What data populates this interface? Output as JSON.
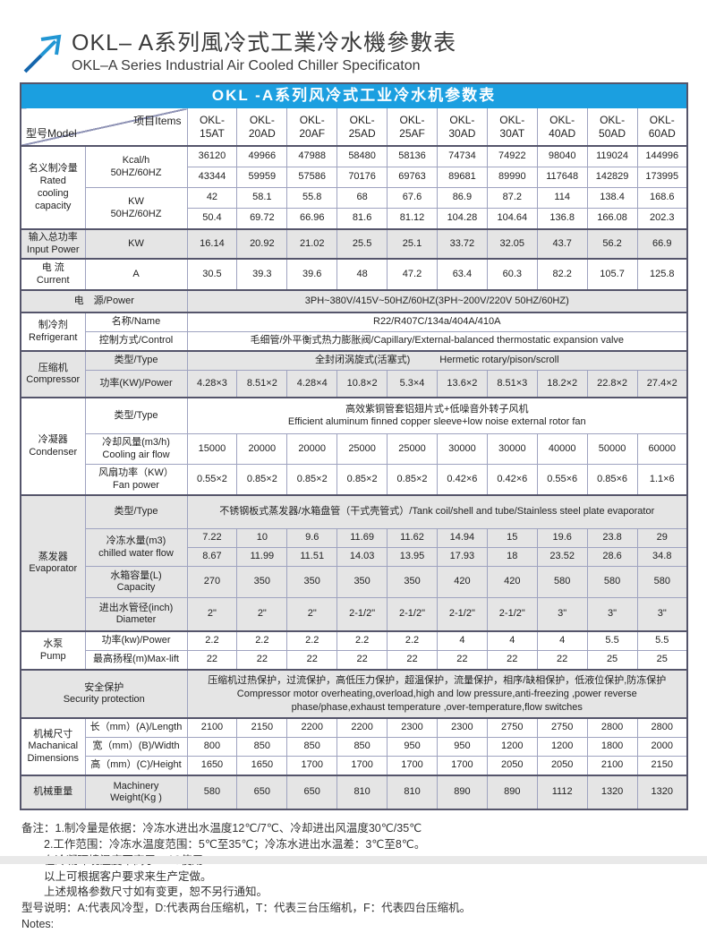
{
  "header": {
    "title_cn": "OKL– A系列風冷式工業冷水機參數表",
    "title_en": "OKL–A Series Industrial Air Cooled Chiller Specificaton"
  },
  "banner": "OKL -A系列风冷式工业冷水机参数表",
  "corner": {
    "model": "型号Model",
    "items": "项目Items"
  },
  "models": [
    "OKL-15AT",
    "OKL-20AD",
    "OKL-20AF",
    "OKL-25AD",
    "OKL-25AF",
    "OKL-30AD",
    "OKL-30AT",
    "OKL-40AD",
    "OKL-50AD",
    "OKL-60AD"
  ],
  "labels": {
    "rated": "名义制冷量\nRated\ncooling\ncapacity",
    "kcal": "Kcal/h\n50HZ/60HZ",
    "kw": "KW\n50HZ/60HZ",
    "input_power": "输入总功率\nInput Power",
    "kw_unit": "KW",
    "current": "电 流\nCurrent",
    "ampere": "A",
    "power_supply": "电　源/Power",
    "refrigerant": "制冷剂\nRefrigerant",
    "name": "名称/Name",
    "control": "控制方式/Control",
    "compressor": "压缩机\nCompressor",
    "type": "类型/Type",
    "comp_power": "功率(KW)/Power",
    "condenser": "冷凝器\nCondenser",
    "air_flow": "冷却风量(m3/h)\nCooling air flow",
    "fan_power": "风扇功率（KW）\nFan power",
    "evaporator": "蒸发器\nEvaporator",
    "chilled": "冷冻水量(m3)\nchilled water flow",
    "tank": "水箱容量(L)\nCapacity",
    "pipe": "进出水管径(inch)\nDiameter",
    "pump": "水泵\nPump",
    "pump_power": "功率(kw)/Power",
    "max_lift": "最高扬程(m)Max-lift",
    "security": "安全保护\nSecurity protection",
    "dimensions": "机械尺寸\nMachanical\nDimensions",
    "length": "长（mm）(A)/Length",
    "width": "宽（mm）(B)/Width",
    "height": "高（mm）(C)/Height",
    "weight": "机械重量",
    "weight_unit": "Machinery\nWeight(Kg )"
  },
  "merged": {
    "power_supply": "3PH~380V/415V~50HZ/60HZ(3PH~200V/220V 50HZ/60HZ)",
    "refrigerant_name": "R22/R407C/134a/404A/410A",
    "refrigerant_control": "毛细管/外平衡式热力膨胀阀/Capillary/External-balanced thermostatic expansion valve",
    "compressor_type": "全封闭涡旋式(活塞式)　　　Hermetic rotary/pison/scroll",
    "condenser_type": "高效紫铜管套铝翅片式+低噪音外转子风机\nEfficient aluminum finned copper sleeve+low noise external rotor fan",
    "evaporator_type": "不锈钢板式蒸发器/水箱盘管（干式壳管式）/Tank coil/shell and tube/Stainless steel plate evaporator",
    "security": "压缩机过热保护，过流保护，高低压力保护，超温保护，流量保护，相序/缺相保护，低液位保护,防冻保护\nCompressor motor overheating,overload,high and low pressure,anti-freezing ,power reverse phase/phase,exhaust temperature ,over-temperature,flow switches"
  },
  "specs": {
    "kcal_50": [
      "36120",
      "49966",
      "47988",
      "58480",
      "58136",
      "74734",
      "74922",
      "98040",
      "119024",
      "144996"
    ],
    "kcal_60": [
      "43344",
      "59959",
      "57586",
      "70176",
      "69763",
      "89681",
      "89990",
      "117648",
      "142829",
      "173995"
    ],
    "kw_50": [
      "42",
      "58.1",
      "55.8",
      "68",
      "67.6",
      "86.9",
      "87.2",
      "114",
      "138.4",
      "168.6"
    ],
    "kw_60": [
      "50.4",
      "69.72",
      "66.96",
      "81.6",
      "81.12",
      "104.28",
      "104.64",
      "136.8",
      "166.08",
      "202.3"
    ],
    "input_power": [
      "16.14",
      "20.92",
      "21.02",
      "25.5",
      "25.1",
      "33.72",
      "32.05",
      "43.7",
      "56.2",
      "66.9"
    ],
    "current": [
      "30.5",
      "39.3",
      "39.6",
      "48",
      "47.2",
      "63.4",
      "60.3",
      "82.2",
      "105.7",
      "125.8"
    ],
    "compressor_power": [
      "4.28×3",
      "8.51×2",
      "4.28×4",
      "10.8×2",
      "5.3×4",
      "13.6×2",
      "8.51×3",
      "18.2×2",
      "22.8×2",
      "27.4×2"
    ],
    "cooling_air_flow": [
      "15000",
      "20000",
      "20000",
      "25000",
      "25000",
      "30000",
      "30000",
      "40000",
      "50000",
      "60000"
    ],
    "fan_power": [
      "0.55×2",
      "0.85×2",
      "0.85×2",
      "0.85×2",
      "0.85×2",
      "0.42×6",
      "0.42×6",
      "0.55×6",
      "0.85×6",
      "1.1×6"
    ],
    "chilled_water_50": [
      "7.22",
      "10",
      "9.6",
      "11.69",
      "11.62",
      "14.94",
      "15",
      "19.6",
      "23.8",
      "29"
    ],
    "chilled_water_60": [
      "8.67",
      "11.99",
      "11.51",
      "14.03",
      "13.95",
      "17.93",
      "18",
      "23.52",
      "28.6",
      "34.8"
    ],
    "tank_capacity": [
      "270",
      "350",
      "350",
      "350",
      "350",
      "420",
      "420",
      "580",
      "580",
      "580"
    ],
    "pipe_diameter": [
      "2\"",
      "2\"",
      "2\"",
      "2-1/2\"",
      "2-1/2\"",
      "2-1/2\"",
      "2-1/2\"",
      "3\"",
      "3\"",
      "3\""
    ],
    "pump_power": [
      "2.2",
      "2.2",
      "2.2",
      "2.2",
      "2.2",
      "4",
      "4",
      "4",
      "5.5",
      "5.5"
    ],
    "max_lift": [
      "22",
      "22",
      "22",
      "22",
      "22",
      "22",
      "22",
      "22",
      "25",
      "25"
    ],
    "length": [
      "2100",
      "2150",
      "2200",
      "2200",
      "2300",
      "2300",
      "2750",
      "2750",
      "2800",
      "2800"
    ],
    "width": [
      "800",
      "850",
      "850",
      "850",
      "950",
      "950",
      "1200",
      "1200",
      "1800",
      "2000"
    ],
    "height": [
      "1650",
      "1650",
      "1700",
      "1700",
      "1700",
      "1700",
      "2050",
      "2050",
      "2100",
      "2150"
    ],
    "weight": [
      "580",
      "650",
      "650",
      "810",
      "810",
      "890",
      "890",
      "1112",
      "1320",
      "1320"
    ]
  },
  "notes": [
    "备注：1.制冷量是依据：冷冻水进出水温度12℃/7℃、冷却进出风温度30℃/35℃",
    "　　2.工作范围：冷冻水温度范围：5℃至35℃；冷冻水进出水温差：3℃至8℃。",
    "　　在冷凝环境温度不高于35℃使用",
    "　　以上可根据客户要求来生产定做。",
    "　　上述规格参数尺寸如有变更，恕不另行通知。",
    "型号说明：A:代表风冷型，D:代表两台压缩机，T：代表三台压缩机，F：代表四台压缩机。",
    "Notes:"
  ],
  "colors": {
    "banner_blue": "#1b9fe0",
    "shade_gray": "#e5e5e5",
    "border_thin": "#9fa3c0",
    "border_thick": "#55556b",
    "arrow_dark_blue": "#1566ad",
    "arrow_light_blue": "#2196d3"
  }
}
